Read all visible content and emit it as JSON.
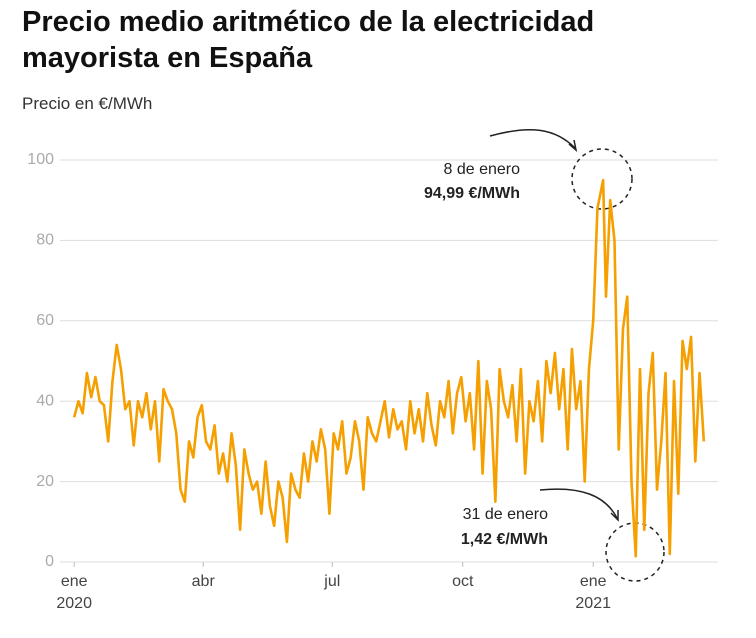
{
  "chart_data": {
    "type": "line",
    "title": "Precio medio aritmético de la electricidad mayorista en España",
    "subtitle": "Precio en €/MWh",
    "x": [
      0,
      3,
      6,
      9,
      12,
      15,
      18,
      21,
      24,
      27,
      30,
      33,
      36,
      39,
      42,
      45,
      48,
      51,
      54,
      57,
      60,
      63,
      66,
      69,
      72,
      75,
      78,
      81,
      84,
      87,
      90,
      93,
      96,
      99,
      102,
      105,
      108,
      111,
      114,
      117,
      120,
      123,
      126,
      129,
      132,
      135,
      138,
      141,
      144,
      147,
      150,
      153,
      156,
      159,
      162,
      165,
      168,
      171,
      174,
      177,
      180,
      183,
      186,
      189,
      192,
      195,
      198,
      201,
      204,
      207,
      210,
      213,
      216,
      219,
      222,
      225,
      228,
      231,
      234,
      237,
      240,
      243,
      246,
      249,
      252,
      255,
      258,
      261,
      264,
      267,
      270,
      273,
      276,
      279,
      282,
      285,
      288,
      291,
      294,
      297,
      300,
      303,
      306,
      309,
      312,
      315,
      318,
      321,
      324,
      327,
      330,
      333,
      336,
      339,
      342,
      345,
      348,
      351,
      354,
      357,
      360,
      363,
      366,
      369,
      373,
      375,
      378,
      381,
      384,
      387,
      390,
      393,
      396,
      399,
      402,
      405,
      408,
      411,
      414,
      417,
      420,
      423,
      426,
      429,
      432,
      435,
      438,
      441,
      444
    ],
    "series": [
      {
        "name": "Precio",
        "color": "#f59f00",
        "values": [
          36,
          40,
          37,
          47,
          41,
          46,
          40,
          39,
          30,
          45,
          54,
          48,
          38,
          40,
          29,
          40,
          36,
          42,
          33,
          40,
          25,
          43,
          40,
          38,
          32,
          18,
          15,
          30,
          26,
          36,
          39,
          30,
          28,
          34,
          22,
          27,
          20,
          32,
          24,
          8,
          28,
          22,
          18,
          20,
          12,
          25,
          14,
          9,
          20,
          16,
          5,
          22,
          18,
          16,
          27,
          20,
          30,
          25,
          33,
          28,
          12,
          32,
          28,
          35,
          22,
          26,
          35,
          30,
          18,
          36,
          32,
          30,
          35,
          40,
          31,
          38,
          33,
          35,
          28,
          40,
          32,
          38,
          30,
          42,
          34,
          29,
          40,
          36,
          45,
          32,
          42,
          46,
          35,
          42,
          28,
          50,
          22,
          45,
          38,
          15,
          48,
          40,
          36,
          44,
          30,
          48,
          22,
          40,
          35,
          45,
          30,
          50,
          42,
          52,
          38,
          48,
          28,
          53,
          38,
          45,
          20,
          48,
          60,
          88,
          94.99,
          66,
          90,
          80,
          28,
          58,
          66,
          20,
          1.42,
          48,
          8,
          42,
          52,
          18,
          30,
          47,
          2,
          45,
          17,
          55,
          48,
          56,
          25,
          47,
          30
        ]
      }
    ],
    "xlim": [
      -10,
      454
    ],
    "xticks": [
      {
        "value": 0,
        "label": "ene"
      },
      {
        "value": 91,
        "label": "abr"
      },
      {
        "value": 182,
        "label": "jul"
      },
      {
        "value": 274,
        "label": "oct"
      },
      {
        "value": 366,
        "label": "ene"
      }
    ],
    "xtick_sublabels": [
      {
        "value": 0,
        "label": "2020"
      },
      {
        "value": 366,
        "label": "2021"
      }
    ],
    "ylim": [
      0,
      100
    ],
    "yticks": [
      0,
      20,
      40,
      60,
      80,
      100
    ],
    "grid": true,
    "annotations": [
      {
        "label": "8 de enero",
        "value_label": "94,99 €/MWh"
      },
      {
        "label": "31 de enero",
        "value_label": "1,42 €/MWh"
      }
    ]
  }
}
